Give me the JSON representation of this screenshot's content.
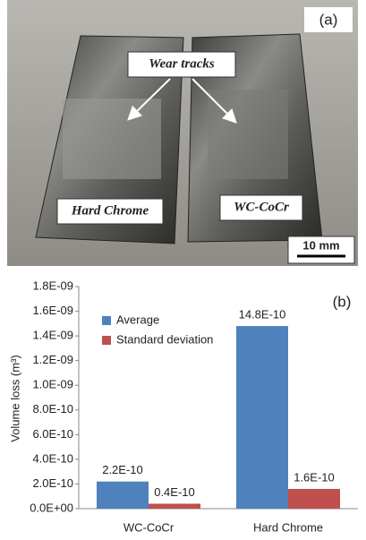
{
  "photo": {
    "panel_label": "(a)",
    "arrow_label": "Wear tracks",
    "left_label": "Hard Chrome",
    "right_label": "WC-CoCr",
    "scale_bar": "10 mm"
  },
  "chart_data": {
    "type": "bar",
    "panel_label": "(b)",
    "y_label": "Volume loss (m³)",
    "categories": [
      "WC-CoCr",
      "Hard Chrome"
    ],
    "series": [
      {
        "name": "Average",
        "color": "#4f81bd",
        "values": [
          2.2e-10,
          1.48e-09
        ],
        "value_labels": [
          "2.2E-10",
          "14.8E-10"
        ]
      },
      {
        "name": "Standard deviation",
        "color": "#c0504d",
        "values": [
          4e-11,
          1.6e-10
        ],
        "value_labels": [
          "0.4E-10",
          "1.6E-10"
        ]
      }
    ],
    "ylim": [
      0,
      1.8e-09
    ],
    "yticks": [
      {
        "value": 0,
        "label": "0.0E+00"
      },
      {
        "value": 2e-10,
        "label": "2.0E-10"
      },
      {
        "value": 4e-10,
        "label": "4.0E-10"
      },
      {
        "value": 6e-10,
        "label": "6.0E-10"
      },
      {
        "value": 8e-10,
        "label": "8.0E-10"
      },
      {
        "value": 1e-09,
        "label": "1.0E-09"
      },
      {
        "value": 1.2e-09,
        "label": "1.2E-09"
      },
      {
        "value": 1.4e-09,
        "label": "1.4E-09"
      },
      {
        "value": 1.6e-09,
        "label": "1.6E-09"
      },
      {
        "value": 1.8e-09,
        "label": "1.8E-09"
      }
    ],
    "legend": "upper left",
    "grid": false
  }
}
